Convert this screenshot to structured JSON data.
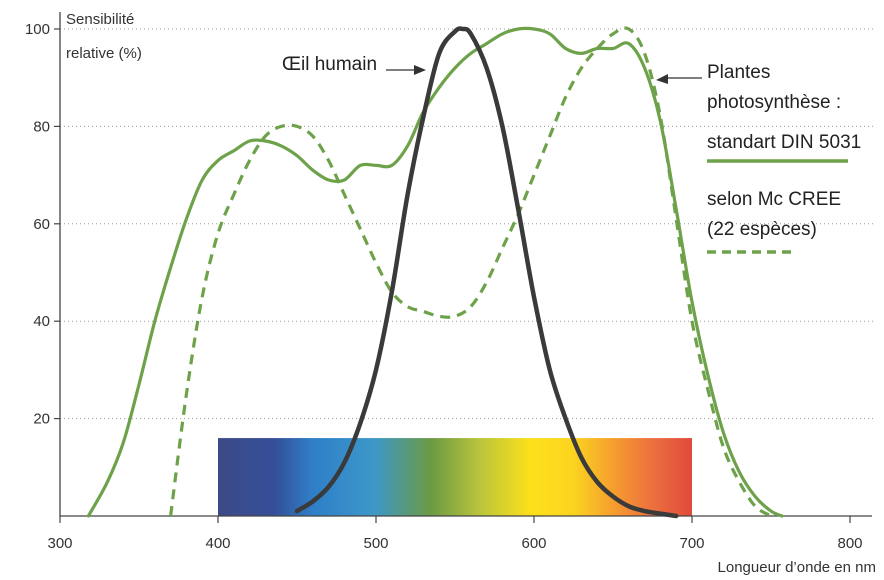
{
  "chart_data": {
    "type": "line",
    "ylabel_lines": [
      "Sensibilité",
      "relative (%)"
    ],
    "xlabel": "Longueur d’onde en nm",
    "xlim": [
      300,
      800
    ],
    "ylim": [
      0,
      100
    ],
    "x_ticks": [
      300,
      400,
      500,
      600,
      700,
      800
    ],
    "y_ticks": [
      20,
      40,
      60,
      80,
      100
    ],
    "grid": "horizontal-dotted",
    "spectrum_band": {
      "x_range": [
        400,
        700
      ],
      "y_range": [
        0,
        16
      ]
    },
    "series": [
      {
        "name": "Œil humain",
        "color": "#3a3a3a",
        "style": "solid",
        "x": [
          450,
          460,
          470,
          480,
          490,
          500,
          510,
          520,
          530,
          540,
          550,
          555,
          560,
          570,
          580,
          590,
          600,
          610,
          620,
          630,
          640,
          650,
          660,
          670,
          680,
          690
        ],
        "y": [
          1,
          3,
          6,
          11,
          19,
          30,
          46,
          66,
          82,
          95,
          99.5,
          100,
          99,
          92,
          80,
          63,
          45,
          30,
          20,
          12,
          7,
          4,
          2,
          1,
          0.5,
          0
        ]
      },
      {
        "name": "standart DIN 5031",
        "color": "#6ea24a",
        "style": "solid",
        "x": [
          318,
          330,
          340,
          350,
          360,
          370,
          380,
          390,
          400,
          410,
          420,
          430,
          440,
          450,
          460,
          470,
          480,
          490,
          500,
          510,
          520,
          530,
          540,
          550,
          560,
          570,
          580,
          590,
          600,
          610,
          620,
          630,
          640,
          650,
          660,
          670,
          680,
          690,
          700,
          710,
          720,
          730,
          740,
          750,
          757
        ],
        "y": [
          0,
          7,
          15,
          27,
          40,
          51,
          61,
          69,
          73,
          75,
          77,
          77,
          76,
          74,
          71,
          69,
          69,
          72,
          72,
          72,
          76,
          83,
          88,
          92,
          95,
          97,
          99,
          100,
          100,
          99,
          96,
          95,
          96,
          96,
          97,
          92,
          81,
          63,
          44,
          29,
          17,
          9,
          4,
          1,
          0
        ]
      },
      {
        "name": "selon Mc CREE (22 espèces)",
        "color": "#6ea24a",
        "style": "dashed",
        "x": [
          370,
          380,
          390,
          400,
          410,
          420,
          430,
          440,
          450,
          460,
          470,
          480,
          490,
          500,
          510,
          520,
          530,
          540,
          550,
          560,
          570,
          580,
          590,
          600,
          610,
          620,
          630,
          640,
          650,
          660,
          670,
          680,
          690,
          700,
          710,
          720,
          730,
          740,
          750
        ],
        "y": [
          0,
          25,
          45,
          58,
          66,
          73,
          78,
          80,
          80,
          78,
          73,
          66,
          59,
          52,
          46,
          43,
          42,
          41,
          41,
          43,
          48,
          55,
          62,
          70,
          78,
          86,
          92,
          96,
          99,
          100,
          95,
          82,
          61,
          40,
          26,
          14,
          7,
          2,
          0
        ]
      }
    ],
    "annotations": {
      "eye_label": "Œil humain",
      "plants_line1": "Plantes",
      "plants_line2": "photosynthèse :",
      "din_label": "standart DIN 5031",
      "mccree_line1": "selon Mc CREE",
      "mccree_line2": "(22 espèces)"
    }
  }
}
